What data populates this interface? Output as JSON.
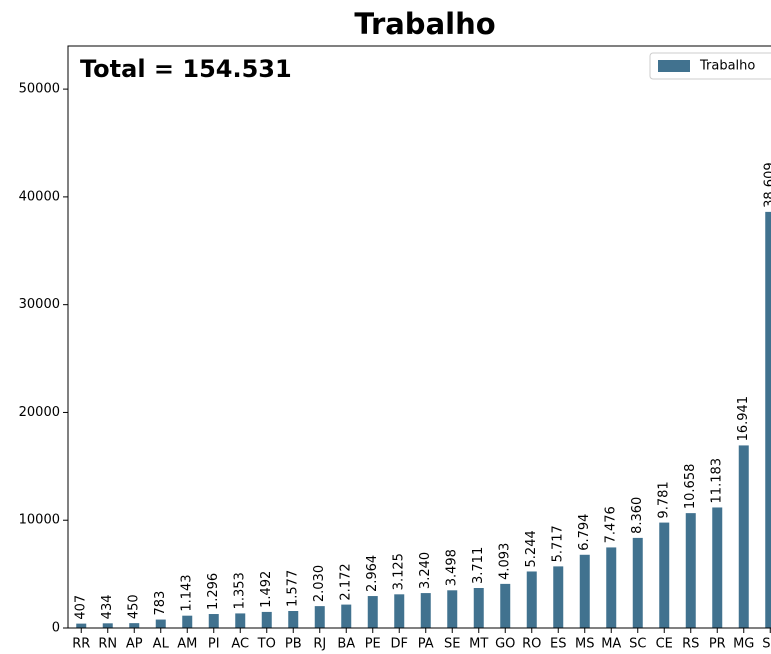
{
  "chart_data": {
    "type": "bar",
    "title": "Trabalho",
    "annotation": "Total = 154.531",
    "categories": [
      "RR",
      "RN",
      "AP",
      "AL",
      "AM",
      "PI",
      "AC",
      "TO",
      "PB",
      "RJ",
      "BA",
      "PE",
      "DF",
      "PA",
      "SE",
      "MT",
      "GO",
      "RO",
      "ES",
      "MS",
      "MA",
      "SC",
      "CE",
      "RS",
      "PR",
      "MG",
      "SP"
    ],
    "series": [
      {
        "name": "Trabalho",
        "color": "#41728f",
        "values": [
          407,
          434,
          450,
          783,
          1143,
          1296,
          1353,
          1492,
          1577,
          2030,
          2172,
          2964,
          3125,
          3240,
          3498,
          3711,
          4093,
          5244,
          5717,
          6794,
          7476,
          8360,
          9781,
          10658,
          11183,
          16941,
          38609
        ],
        "value_labels": [
          "407",
          "434",
          "450",
          "783",
          "1.143",
          "1.296",
          "1.353",
          "1.492",
          "1.577",
          "2.030",
          "2.172",
          "2.964",
          "3.125",
          "3.240",
          "3.498",
          "3.711",
          "4.093",
          "5.244",
          "5.717",
          "6.794",
          "7.476",
          "8.360",
          "9.781",
          "10.658",
          "11.183",
          "16.941",
          "38.609"
        ]
      }
    ],
    "ylim": [
      0,
      54000
    ],
    "yticks": [
      0,
      10000,
      20000,
      30000,
      40000,
      50000
    ],
    "legend": "upper right"
  }
}
